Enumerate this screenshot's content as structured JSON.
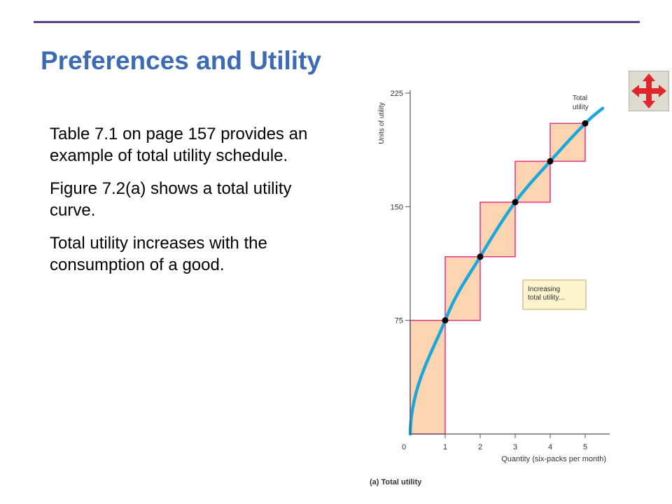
{
  "slide": {
    "title": "Preferences and Utility",
    "paragraphs": [
      "Table 7.1 on page 157 provides an example of total utility schedule.",
      "Figure 7.2(a) shows a total utility curve.",
      "Total utility increases with the consumption of a good."
    ]
  },
  "nav_button": {
    "icon": "four-way-arrows-icon",
    "color": "#e0262b"
  },
  "chart_data": {
    "type": "line",
    "title": "(a) Total utility",
    "xlabel": "Quantity (six-packs per month)",
    "ylabel": "Units of utility",
    "x_ticks": [
      "0",
      "1",
      "2",
      "3",
      "4",
      "5"
    ],
    "y_ticks": [
      "75",
      "150",
      "225"
    ],
    "xlim": [
      0,
      5.7
    ],
    "ylim": [
      0,
      225
    ],
    "points": [
      {
        "x": 1,
        "y": 75
      },
      {
        "x": 2,
        "y": 117
      },
      {
        "x": 3,
        "y": 153
      },
      {
        "x": 4,
        "y": 180
      },
      {
        "x": 5,
        "y": 205
      }
    ],
    "curve_label": [
      "Total",
      "utility"
    ],
    "annotation": [
      "Increasing",
      "total utility..."
    ],
    "colors": {
      "curve": "#1aa7dc",
      "bar_fill": "#fcd5b0",
      "bar_stroke": "#e0338a",
      "annotation_fill": "#fdf4cd"
    }
  }
}
